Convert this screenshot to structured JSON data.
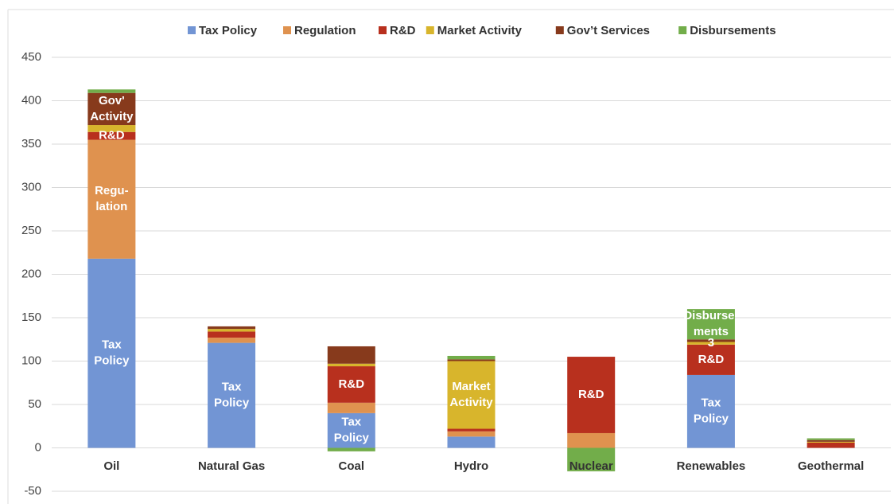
{
  "chart_data": {
    "type": "stacked_bar",
    "categories": [
      "Oil",
      "Natural Gas",
      "Coal",
      "Hydro",
      "Nuclear",
      "Renewables",
      "Geothermal"
    ],
    "series": [
      {
        "name": "Tax Policy",
        "color": "#7295d4",
        "values": [
          218,
          121,
          40,
          13,
          0,
          84,
          0
        ]
      },
      {
        "name": "Regulation",
        "color": "#df924f",
        "values": [
          137,
          6,
          12,
          6,
          17,
          0,
          0
        ]
      },
      {
        "name": "R&D",
        "color": "#b8301e",
        "values": [
          9,
          7,
          42,
          3,
          88,
          35,
          6
        ]
      },
      {
        "name": "Market Activity",
        "color": "#d8b52c",
        "values": [
          8,
          3,
          3,
          78,
          0,
          3,
          1
        ]
      },
      {
        "name": "Gov’t Services",
        "color": "#873a1c",
        "values": [
          37,
          3,
          20,
          2,
          0,
          3,
          2
        ]
      },
      {
        "name": "Disbursements",
        "color": "#72ad4a",
        "values": [
          4,
          0,
          -4,
          4,
          -27,
          35,
          2
        ]
      }
    ],
    "annotations": [
      {
        "category": "Oil",
        "series": "Tax Policy",
        "lines": [
          "Tax",
          "Policy"
        ]
      },
      {
        "category": "Oil",
        "series": "Regulation",
        "lines": [
          "Regu-",
          "lation"
        ]
      },
      {
        "category": "Oil",
        "series": "R&D",
        "lines": [
          "R&D"
        ]
      },
      {
        "category": "Oil",
        "series": "Gov’t Services",
        "lines": [
          "Gov'",
          "Activity"
        ]
      },
      {
        "category": "Natural Gas",
        "series": "Tax Policy",
        "lines": [
          "Tax",
          "Policy"
        ]
      },
      {
        "category": "Coal",
        "series": "Tax Policy",
        "lines": [
          "Tax",
          "Policy"
        ]
      },
      {
        "category": "Coal",
        "series": "R&D",
        "lines": [
          "R&D"
        ]
      },
      {
        "category": "Hydro",
        "series": "Market Activity",
        "lines": [
          "Market",
          "Activity"
        ]
      },
      {
        "category": "Nuclear",
        "series": "R&D",
        "lines": [
          "R&D"
        ]
      },
      {
        "category": "Renewables",
        "series": "Tax Policy",
        "lines": [
          "Tax",
          "Policy"
        ]
      },
      {
        "category": "Renewables",
        "series": "R&D",
        "lines": [
          "R&D"
        ]
      },
      {
        "category": "Renewables",
        "series": "Market Activity",
        "lines": [
          "3"
        ]
      },
      {
        "category": "Renewables",
        "series": "Disbursements",
        "lines": [
          "Disburse-",
          "ments"
        ]
      }
    ],
    "ylim": [
      -50,
      450
    ],
    "yticks": [
      -50,
      0,
      50,
      100,
      150,
      200,
      250,
      300,
      350,
      400,
      450
    ],
    "grid": true,
    "legend": "top"
  }
}
